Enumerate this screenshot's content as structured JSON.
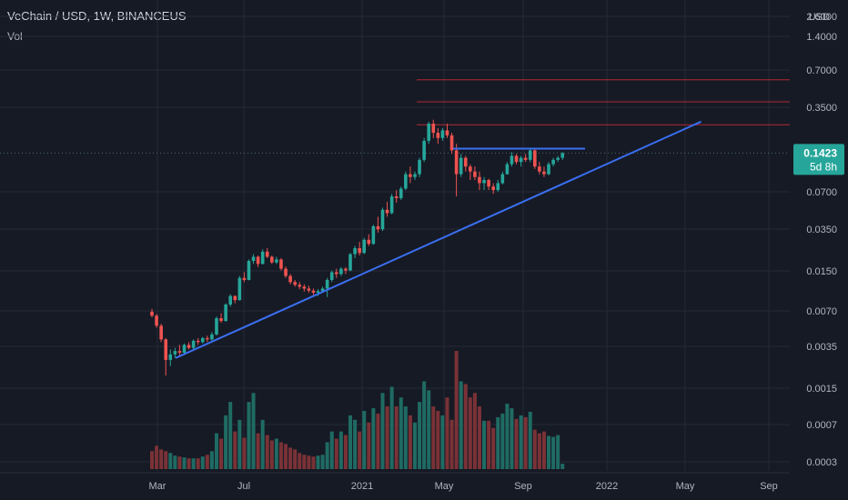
{
  "header": {
    "title": "VeChain / USD, 1W, BINANCEUS",
    "indicator": "Vol"
  },
  "chart_data": {
    "type": "candlestick",
    "y_scale": "log",
    "currency_label": "USD",
    "y_ticks": [
      "2.6000",
      "1.4000",
      "0.7000",
      "0.3500",
      "0.1423",
      "0.0700",
      "0.0350",
      "0.0150",
      "0.0070",
      "0.0035",
      "0.0015",
      "0.0007",
      "0.0003"
    ],
    "x_ticks": [
      "Mar",
      "Jul",
      "2021",
      "May",
      "Sep",
      "2022",
      "May",
      "Sep"
    ],
    "last_price": {
      "label": "0.1423",
      "countdown": "5d 8h",
      "value": 0.1423
    },
    "horizontal_lines": [
      0.58,
      0.38,
      0.245
    ],
    "resistance_line": {
      "from_date": "2021-05",
      "to_date": "2021-11",
      "value": 0.155
    },
    "trendline": {
      "from": [
        "2020-03",
        0.0028
      ],
      "to": [
        "2022-04",
        0.26
      ]
    },
    "candles": [
      [
        0.0068,
        0.0072,
        0.0061,
        0.0063
      ],
      [
        0.0063,
        0.0065,
        0.005,
        0.0052
      ],
      [
        0.0052,
        0.0054,
        0.0038,
        0.004
      ],
      [
        0.004,
        0.0041,
        0.002,
        0.0027
      ],
      [
        0.0027,
        0.0033,
        0.0024,
        0.003
      ],
      [
        0.003,
        0.0034,
        0.0028,
        0.0032
      ],
      [
        0.0032,
        0.0036,
        0.0029,
        0.0031
      ],
      [
        0.0031,
        0.0037,
        0.003,
        0.0036
      ],
      [
        0.0036,
        0.0038,
        0.0033,
        0.0034
      ],
      [
        0.0034,
        0.004,
        0.0033,
        0.0039
      ],
      [
        0.0039,
        0.0041,
        0.0036,
        0.0038
      ],
      [
        0.0038,
        0.0042,
        0.0037,
        0.0041
      ],
      [
        0.0041,
        0.0043,
        0.0038,
        0.004
      ],
      [
        0.004,
        0.0046,
        0.0039,
        0.0044
      ],
      [
        0.0044,
        0.0062,
        0.0043,
        0.006
      ],
      [
        0.006,
        0.0066,
        0.0055,
        0.0057
      ],
      [
        0.0057,
        0.008,
        0.0056,
        0.0078
      ],
      [
        0.0078,
        0.0095,
        0.0075,
        0.0092
      ],
      [
        0.0092,
        0.0093,
        0.008,
        0.0085
      ],
      [
        0.0085,
        0.0135,
        0.0084,
        0.013
      ],
      [
        0.013,
        0.0145,
        0.012,
        0.0125
      ],
      [
        0.0125,
        0.0185,
        0.0124,
        0.018
      ],
      [
        0.018,
        0.0205,
        0.017,
        0.0195
      ],
      [
        0.0195,
        0.02,
        0.016,
        0.017
      ],
      [
        0.017,
        0.0225,
        0.0168,
        0.0215
      ],
      [
        0.0215,
        0.023,
        0.019,
        0.0195
      ],
      [
        0.0195,
        0.02,
        0.017,
        0.0175
      ],
      [
        0.0175,
        0.0195,
        0.017,
        0.0185
      ],
      [
        0.0185,
        0.019,
        0.015,
        0.0155
      ],
      [
        0.0155,
        0.0162,
        0.013,
        0.0135
      ],
      [
        0.0135,
        0.014,
        0.0115,
        0.012
      ],
      [
        0.012,
        0.0125,
        0.011,
        0.0114
      ],
      [
        0.0114,
        0.012,
        0.0105,
        0.011
      ],
      [
        0.011,
        0.0115,
        0.01,
        0.0106
      ],
      [
        0.0106,
        0.0112,
        0.0098,
        0.0102
      ],
      [
        0.0102,
        0.0106,
        0.0093,
        0.0098
      ],
      [
        0.0098,
        0.0105,
        0.0092,
        0.0101
      ],
      [
        0.0101,
        0.011,
        0.01,
        0.0106
      ],
      [
        0.0106,
        0.013,
        0.009,
        0.0125
      ],
      [
        0.0125,
        0.015,
        0.012,
        0.0145
      ],
      [
        0.0145,
        0.0155,
        0.013,
        0.014
      ],
      [
        0.014,
        0.016,
        0.0135,
        0.0155
      ],
      [
        0.0155,
        0.016,
        0.014,
        0.015
      ],
      [
        0.015,
        0.021,
        0.0148,
        0.0205
      ],
      [
        0.0205,
        0.024,
        0.019,
        0.023
      ],
      [
        0.023,
        0.026,
        0.02,
        0.021
      ],
      [
        0.021,
        0.028,
        0.0205,
        0.027
      ],
      [
        0.027,
        0.03,
        0.024,
        0.025
      ],
      [
        0.025,
        0.036,
        0.0245,
        0.035
      ],
      [
        0.035,
        0.042,
        0.031,
        0.033
      ],
      [
        0.033,
        0.05,
        0.032,
        0.048
      ],
      [
        0.048,
        0.056,
        0.042,
        0.045
      ],
      [
        0.045,
        0.065,
        0.044,
        0.062
      ],
      [
        0.062,
        0.07,
        0.055,
        0.06
      ],
      [
        0.06,
        0.075,
        0.058,
        0.072
      ],
      [
        0.072,
        0.1,
        0.07,
        0.095
      ],
      [
        0.095,
        0.11,
        0.08,
        0.09
      ],
      [
        0.09,
        0.1,
        0.085,
        0.095
      ],
      [
        0.095,
        0.13,
        0.09,
        0.125
      ],
      [
        0.125,
        0.19,
        0.12,
        0.18
      ],
      [
        0.18,
        0.26,
        0.17,
        0.25
      ],
      [
        0.25,
        0.27,
        0.19,
        0.21
      ],
      [
        0.21,
        0.23,
        0.17,
        0.19
      ],
      [
        0.19,
        0.23,
        0.18,
        0.22
      ],
      [
        0.22,
        0.25,
        0.19,
        0.2
      ],
      [
        0.2,
        0.21,
        0.14,
        0.15
      ],
      [
        0.15,
        0.17,
        0.062,
        0.095
      ],
      [
        0.095,
        0.14,
        0.09,
        0.13
      ],
      [
        0.13,
        0.135,
        0.1,
        0.11
      ],
      [
        0.11,
        0.115,
        0.085,
        0.1
      ],
      [
        0.1,
        0.11,
        0.085,
        0.09
      ],
      [
        0.09,
        0.1,
        0.07,
        0.08
      ],
      [
        0.08,
        0.09,
        0.07,
        0.085
      ],
      [
        0.085,
        0.087,
        0.07,
        0.075
      ],
      [
        0.075,
        0.08,
        0.065,
        0.07
      ],
      [
        0.07,
        0.085,
        0.068,
        0.08
      ],
      [
        0.08,
        0.1,
        0.078,
        0.095
      ],
      [
        0.095,
        0.12,
        0.094,
        0.115
      ],
      [
        0.115,
        0.145,
        0.11,
        0.135
      ],
      [
        0.135,
        0.14,
        0.115,
        0.12
      ],
      [
        0.12,
        0.135,
        0.11,
        0.13
      ],
      [
        0.13,
        0.14,
        0.12,
        0.125
      ],
      [
        0.125,
        0.155,
        0.12,
        0.15
      ],
      [
        0.15,
        0.155,
        0.105,
        0.11
      ],
      [
        0.11,
        0.12,
        0.095,
        0.1
      ],
      [
        0.1,
        0.11,
        0.09,
        0.095
      ],
      [
        0.095,
        0.12,
        0.093,
        0.115
      ],
      [
        0.115,
        0.13,
        0.11,
        0.125
      ],
      [
        0.125,
        0.135,
        0.12,
        0.13
      ],
      [
        0.13,
        0.145,
        0.125,
        0.1423
      ]
    ],
    "volume": [
      20,
      26,
      22,
      20,
      18,
      15,
      14,
      13,
      12,
      12,
      12,
      14,
      16,
      20,
      40,
      34,
      60,
      75,
      42,
      55,
      35,
      75,
      85,
      40,
      55,
      38,
      32,
      34,
      30,
      28,
      24,
      22,
      18,
      16,
      15,
      14,
      15,
      16,
      30,
      42,
      34,
      42,
      38,
      60,
      55,
      42,
      65,
      52,
      68,
      62,
      85,
      70,
      92,
      70,
      80,
      70,
      60,
      52,
      75,
      98,
      88,
      70,
      65,
      60,
      80,
      55,
      132,
      98,
      95,
      80,
      85,
      70,
      54,
      54,
      46,
      58,
      62,
      73,
      68,
      56,
      60,
      58,
      64,
      44,
      40,
      42,
      37,
      36,
      38,
      6
    ]
  }
}
